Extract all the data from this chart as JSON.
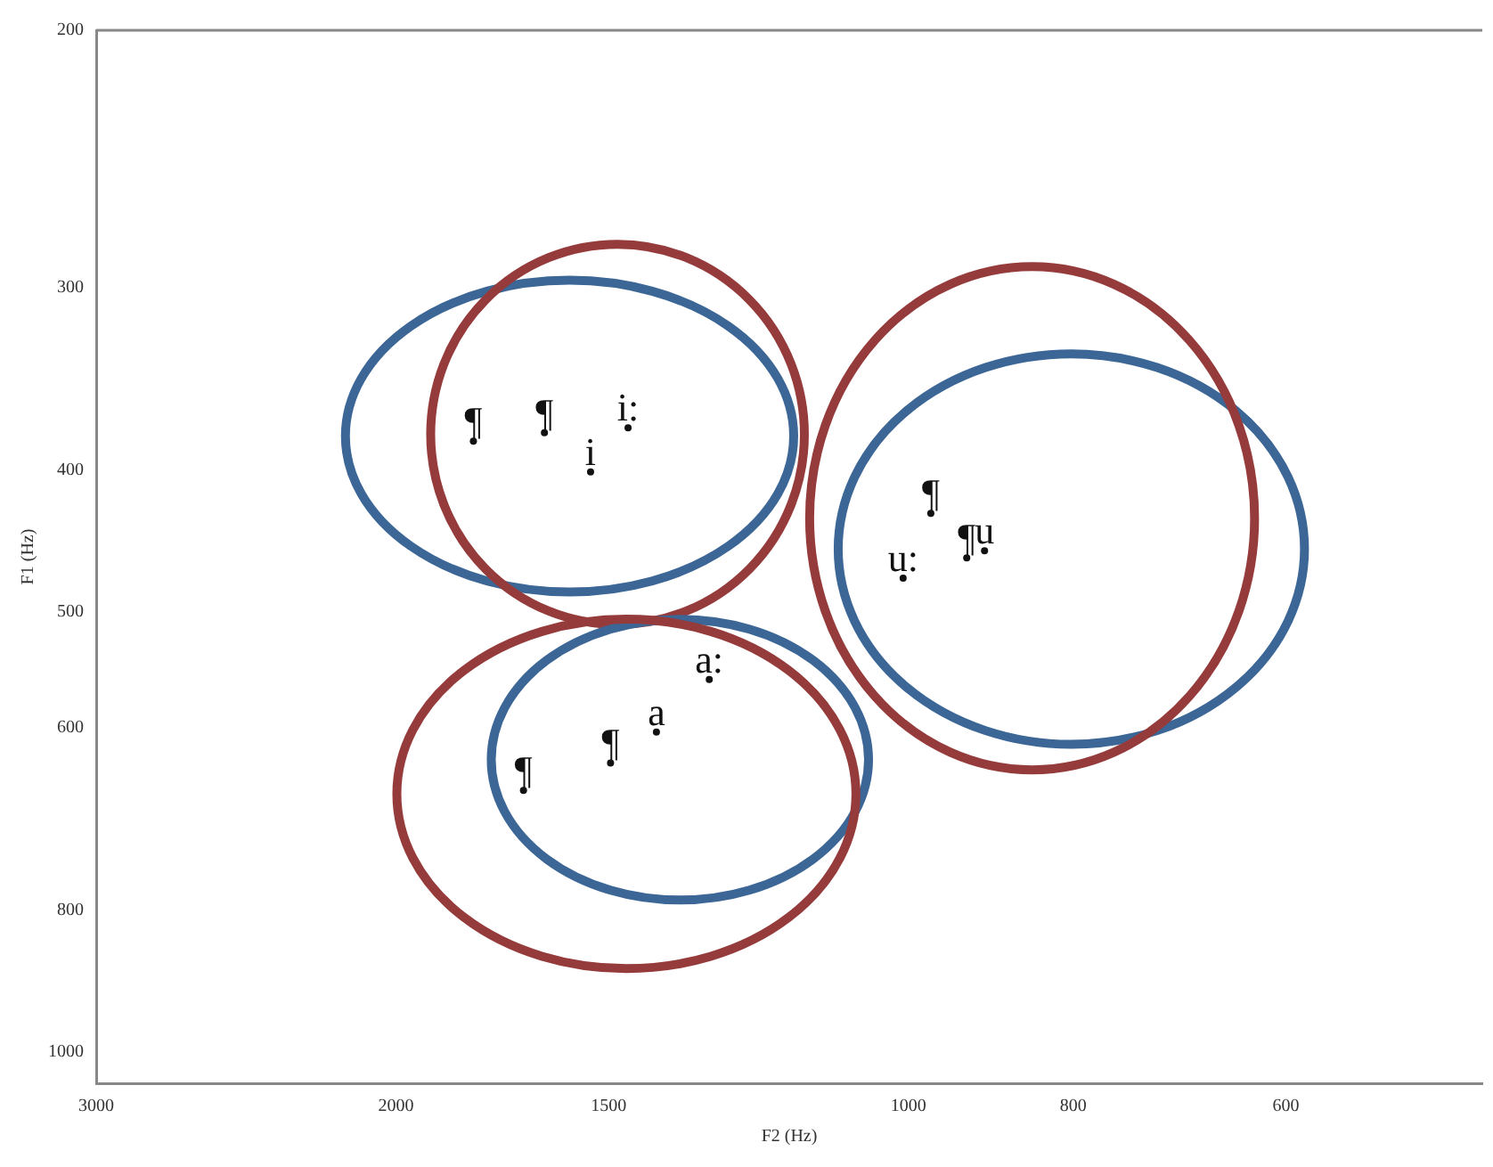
{
  "chart_data": {
    "type": "scatter",
    "xlabel": "F2 (Hz)",
    "ylabel": "F1 (Hz)",
    "log": "xy",
    "xlim": [
      3000,
      460
    ],
    "ylim": [
      1050,
      200
    ],
    "xticks": [
      3000,
      2000,
      1500,
      1000,
      800,
      600
    ],
    "yticks": [
      200,
      300,
      400,
      500,
      600,
      800,
      1000
    ],
    "grid": false,
    "legend": false,
    "series": [
      {
        "color": "#111111",
        "x": [
          1801,
          1636,
          1537,
          1461,
          970,
          924,
          902,
          1007,
          1309,
          1406,
          1496,
          1683
        ],
        "values": [
          382,
          377,
          401,
          374,
          428,
          459,
          454,
          474,
          556,
          604,
          634,
          662
        ],
        "value_labels": [
          "¶",
          "¶",
          "i",
          "i:",
          "¶",
          "¶",
          "u",
          "u:",
          "a:",
          "a",
          "¶",
          "¶"
        ]
      }
    ]
  }
}
